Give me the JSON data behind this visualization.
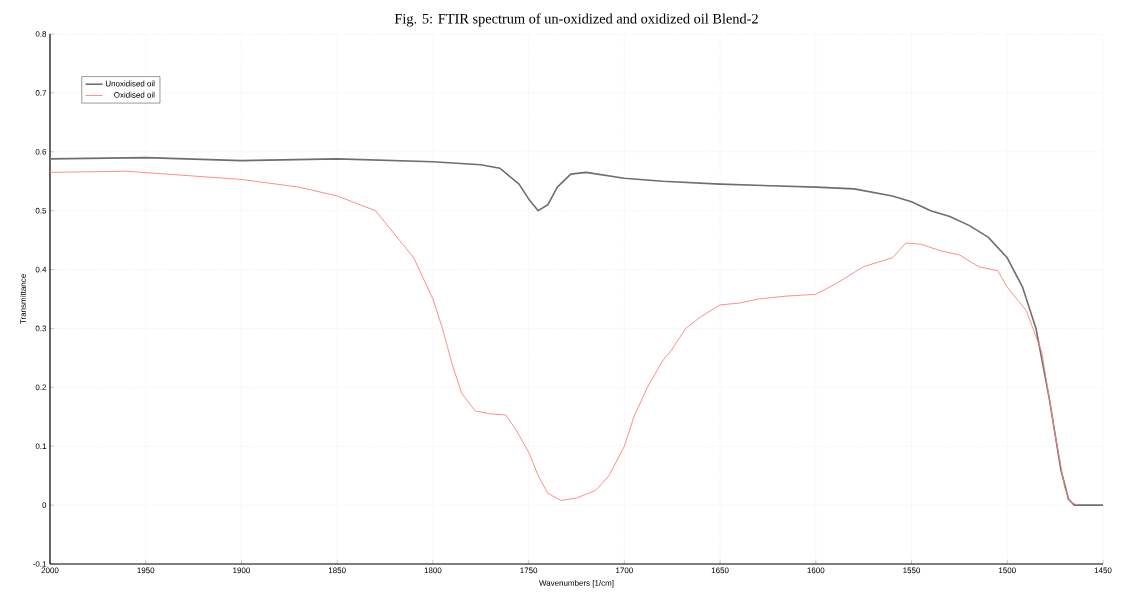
{
  "chart_data": {
    "type": "line",
    "title": "Fig. 5: FTIR spectrum of un-oxidized and oxidized oil Blend-2",
    "xlabel": "Wavenumbers [1/cm]",
    "ylabel": "Transmittance",
    "xlim": [
      2000,
      1450
    ],
    "xticks": [
      2000,
      1950,
      1900,
      1850,
      1800,
      1750,
      1700,
      1650,
      1600,
      1550,
      1500,
      1450
    ],
    "ylim": [
      -0.1,
      0.8
    ],
    "yticks": [
      -0.1,
      0,
      0.1,
      0.2,
      0.3,
      0.4,
      0.5,
      0.6,
      0.7,
      0.8
    ],
    "grid": true,
    "legend": "top left",
    "marker": "none",
    "line_style": "solid",
    "series": [
      {
        "name": "Unoxidised oil",
        "color": "#6e6e6e",
        "x": [
          2000,
          1950,
          1900,
          1850,
          1800,
          1775,
          1765,
          1755,
          1750,
          1745,
          1740,
          1735,
          1728,
          1720,
          1700,
          1680,
          1650,
          1600,
          1580,
          1560,
          1550,
          1540,
          1530,
          1520,
          1510,
          1500,
          1492,
          1485,
          1478,
          1472,
          1468,
          1465,
          1450
        ],
        "values": [
          0.588,
          0.59,
          0.585,
          0.588,
          0.583,
          0.578,
          0.572,
          0.545,
          0.52,
          0.5,
          0.51,
          0.54,
          0.562,
          0.565,
          0.555,
          0.55,
          0.545,
          0.54,
          0.537,
          0.525,
          0.515,
          0.5,
          0.49,
          0.475,
          0.455,
          0.42,
          0.37,
          0.3,
          0.18,
          0.06,
          0.01,
          0,
          0
        ]
      },
      {
        "name": "Oxidised oil",
        "color": "#ff7f7f",
        "x": [
          2000,
          1960,
          1900,
          1870,
          1850,
          1830,
          1820,
          1810,
          1800,
          1795,
          1790,
          1785,
          1778,
          1770,
          1762,
          1757,
          1750,
          1745,
          1740,
          1733,
          1725,
          1715,
          1708,
          1700,
          1695,
          1688,
          1680,
          1675,
          1668,
          1660,
          1650,
          1640,
          1630,
          1615,
          1600,
          1590,
          1575,
          1565,
          1560,
          1553,
          1545,
          1535,
          1525,
          1515,
          1505,
          1500,
          1490,
          1482,
          1475,
          1470,
          1467,
          1463
        ],
        "values": [
          0.565,
          0.567,
          0.553,
          0.54,
          0.525,
          0.5,
          0.46,
          0.42,
          0.35,
          0.3,
          0.24,
          0.19,
          0.16,
          0.155,
          0.153,
          0.13,
          0.09,
          0.05,
          0.02,
          0.008,
          0.012,
          0.025,
          0.05,
          0.1,
          0.15,
          0.2,
          0.245,
          0.265,
          0.3,
          0.32,
          0.34,
          0.343,
          0.35,
          0.355,
          0.358,
          0.375,
          0.405,
          0.415,
          0.42,
          0.445,
          0.443,
          0.432,
          0.425,
          0.405,
          0.398,
          0.37,
          0.33,
          0.26,
          0.12,
          0.03,
          0.005,
          0
        ]
      }
    ]
  }
}
